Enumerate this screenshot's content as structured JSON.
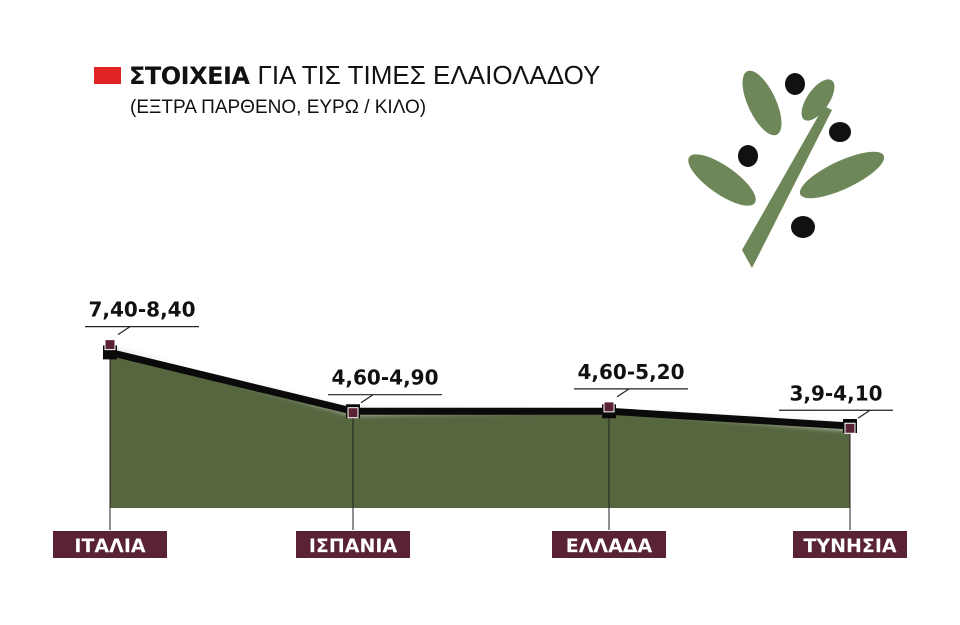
{
  "title": {
    "bold": "ΣΤΟΙΧΕΙΑ",
    "rest": "ΓΙΑ ΤΙΣ ΤΙΜΕΣ ΕΛΑΙΟΛΑΔΟΥ",
    "subtitle": "(ΕΞΤΡΑ ΠΑΡΘΕΝΟ, ΕΥΡΩ / ΚΙΛΟ)",
    "marker_color": "#e02424"
  },
  "decoration": {
    "icon": "olive-branch-icon",
    "leaf_color": "#6e8758",
    "olive_color": "#111111"
  },
  "colors": {
    "area": "#56663f",
    "line": "#0a0a0a",
    "upper_band": "#d9d9d9",
    "marker": "#5a2333",
    "label_bg": "#5a2333",
    "label_text": "#ffffff"
  },
  "chart_data": {
    "type": "area",
    "categories": [
      "ΙΤΑΛΙΑ",
      "ΙΣΠΑΝΙΑ",
      "ΕΛΛΑΔΑ",
      "ΤΥΝΗΣΙΑ"
    ],
    "range_labels": [
      "7,40-8,40",
      "4,60-4,90",
      "4,60-5,20",
      "3,9-4,10"
    ],
    "series": [
      {
        "name": "",
        "values": [
          7.4,
          4.6,
          4.6,
          3.9
        ]
      },
      {
        "name": "",
        "values": [
          8.4,
          4.9,
          5.2,
          4.1
        ]
      }
    ],
    "ylim": [
      0,
      9.5
    ],
    "grid": false,
    "legend": "none"
  }
}
